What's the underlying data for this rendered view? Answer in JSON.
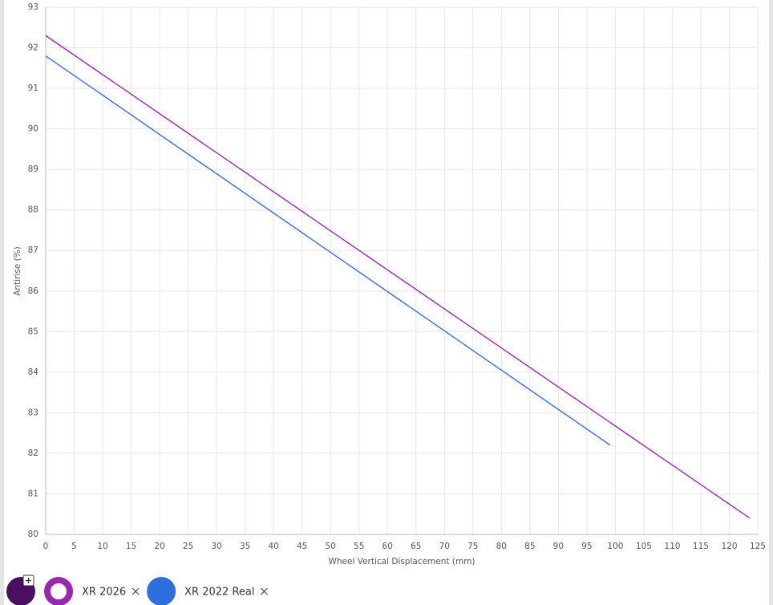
{
  "chart_data": {
    "type": "line",
    "x_label": "Wheel Vertical Displacement (mm)",
    "y_label": "Antirise (%)",
    "series": [
      {
        "name": "XR 2026",
        "color": "#9b27b0",
        "x": [
          0,
          123.6
        ],
        "values": [
          92.3,
          80.4
        ]
      },
      {
        "name": "XR 2022 Real",
        "color": "#2f6fdb",
        "x": [
          0,
          99.1
        ],
        "values": [
          91.8,
          82.2
        ]
      }
    ],
    "xlim": [
      0,
      125
    ],
    "xticks": [
      0,
      5,
      10,
      15,
      20,
      25,
      30,
      35,
      40,
      45,
      50,
      55,
      60,
      65,
      70,
      75,
      80,
      85,
      90,
      95,
      100,
      105,
      110,
      115,
      120,
      125
    ],
    "ylim": [
      80,
      93
    ],
    "yticks": [
      80,
      81,
      82,
      83,
      84,
      85,
      86,
      87,
      88,
      89,
      90,
      91,
      92,
      93
    ],
    "grid": true
  }
}
